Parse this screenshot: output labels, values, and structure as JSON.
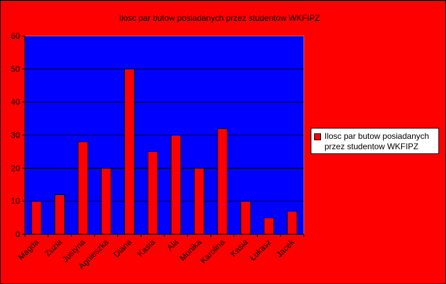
{
  "chart_data": {
    "type": "bar",
    "title": "Ilosc par butow posiadanych przez studentow WKFIPZ",
    "categories": [
      "Magda",
      "Zuzia",
      "Justyna",
      "Agnieszka",
      "Diana",
      "Kasia",
      "Ala",
      "Monika",
      "Karolina",
      "Kasia",
      "Łukasz",
      "Jacek"
    ],
    "series": [
      {
        "name": "Ilosc par butow posiadanych przez studentow WKFIPZ",
        "values": [
          10,
          12,
          28,
          20,
          50,
          25,
          30,
          20,
          32,
          10,
          5,
          7
        ]
      }
    ],
    "ylim": [
      0,
      60
    ],
    "yticks": [
      0,
      10,
      20,
      30,
      40,
      50,
      60
    ],
    "grid": true,
    "legend_position": "right",
    "colors": {
      "background": "#ff0000",
      "plot_area": "#0000ff",
      "bar": "#ff0000",
      "grid": "#000000"
    }
  }
}
